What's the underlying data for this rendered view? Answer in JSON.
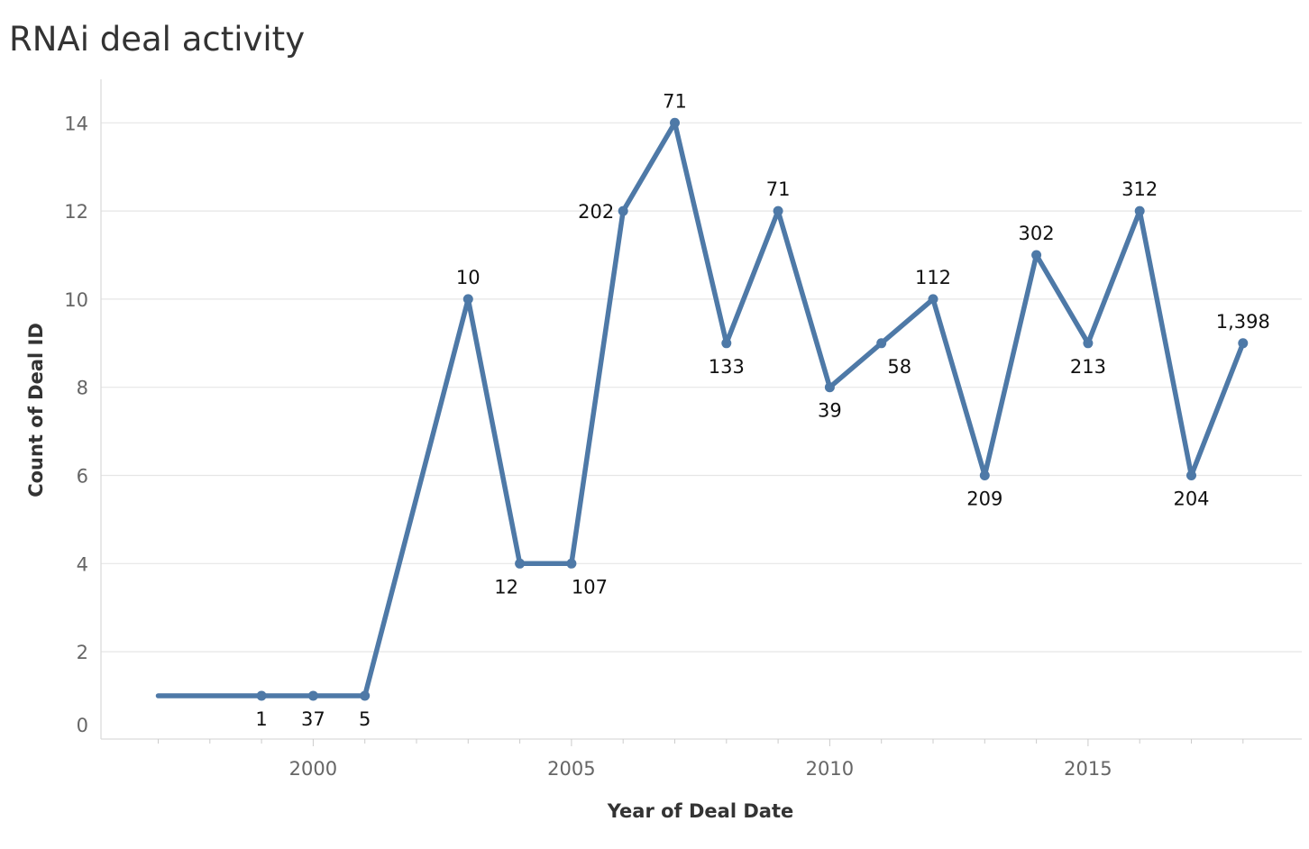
{
  "chart_data": {
    "type": "line",
    "title": "RNAi deal activity",
    "xlabel": "Year of Deal Date",
    "ylabel": "Count of Deal ID",
    "xlim": [
      1996,
      2019
    ],
    "ylim": [
      0,
      14.6
    ],
    "x_ticks": [
      2000,
      2005,
      2010,
      2015
    ],
    "y_ticks": [
      0,
      2,
      4,
      6,
      8,
      10,
      12,
      14
    ],
    "grid": true,
    "legend": "none",
    "color": "#4e79a7",
    "series": [
      {
        "points": [
          {
            "x": 1997,
            "y": 1,
            "label": "",
            "marker": false
          },
          {
            "x": 1999,
            "y": 1,
            "label": "1",
            "pos": "below"
          },
          {
            "x": 2000,
            "y": 1,
            "label": "37",
            "pos": "below"
          },
          {
            "x": 2001,
            "y": 1,
            "label": "5",
            "pos": "below"
          },
          {
            "x": 2003,
            "y": 10,
            "label": "10",
            "pos": "above"
          },
          {
            "x": 2004,
            "y": 4,
            "label": "12",
            "pos": "below-left"
          },
          {
            "x": 2005,
            "y": 4,
            "label": "107",
            "pos": "below-right"
          },
          {
            "x": 2006,
            "y": 12,
            "label": "202",
            "pos": "left"
          },
          {
            "x": 2007,
            "y": 14,
            "label": "71",
            "pos": "above"
          },
          {
            "x": 2008,
            "y": 9,
            "label": "133",
            "pos": "below"
          },
          {
            "x": 2009,
            "y": 12,
            "label": "71",
            "pos": "above"
          },
          {
            "x": 2010,
            "y": 8,
            "label": "39",
            "pos": "below"
          },
          {
            "x": 2011,
            "y": 9,
            "label": "58",
            "pos": "below-right"
          },
          {
            "x": 2012,
            "y": 10,
            "label": "112",
            "pos": "above"
          },
          {
            "x": 2013,
            "y": 6,
            "label": "209",
            "pos": "below"
          },
          {
            "x": 2014,
            "y": 11,
            "label": "302",
            "pos": "above"
          },
          {
            "x": 2015,
            "y": 9,
            "label": "213",
            "pos": "below"
          },
          {
            "x": 2016,
            "y": 12,
            "label": "312",
            "pos": "above"
          },
          {
            "x": 2017,
            "y": 6,
            "label": "204",
            "pos": "below"
          },
          {
            "x": 2018,
            "y": 9,
            "label": "1,398",
            "pos": "above"
          }
        ]
      }
    ]
  }
}
